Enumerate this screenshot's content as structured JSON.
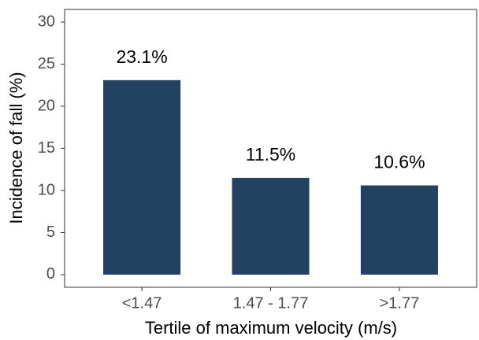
{
  "chart_data": {
    "type": "bar",
    "categories": [
      "<1.47",
      "1.47 - 1.77",
      ">1.77"
    ],
    "values": [
      23.1,
      11.5,
      10.6
    ],
    "value_labels": [
      "23.1%",
      "11.5%",
      "10.6%"
    ],
    "color": "#234262",
    "x_label": "Tertile of maximum velocity (m/s)",
    "y_label": "Incidence of fall (%)",
    "ylim": [
      -1.5,
      31.5
    ],
    "yticks": [
      0,
      5,
      10,
      15,
      20,
      25,
      30
    ],
    "grid": false
  }
}
